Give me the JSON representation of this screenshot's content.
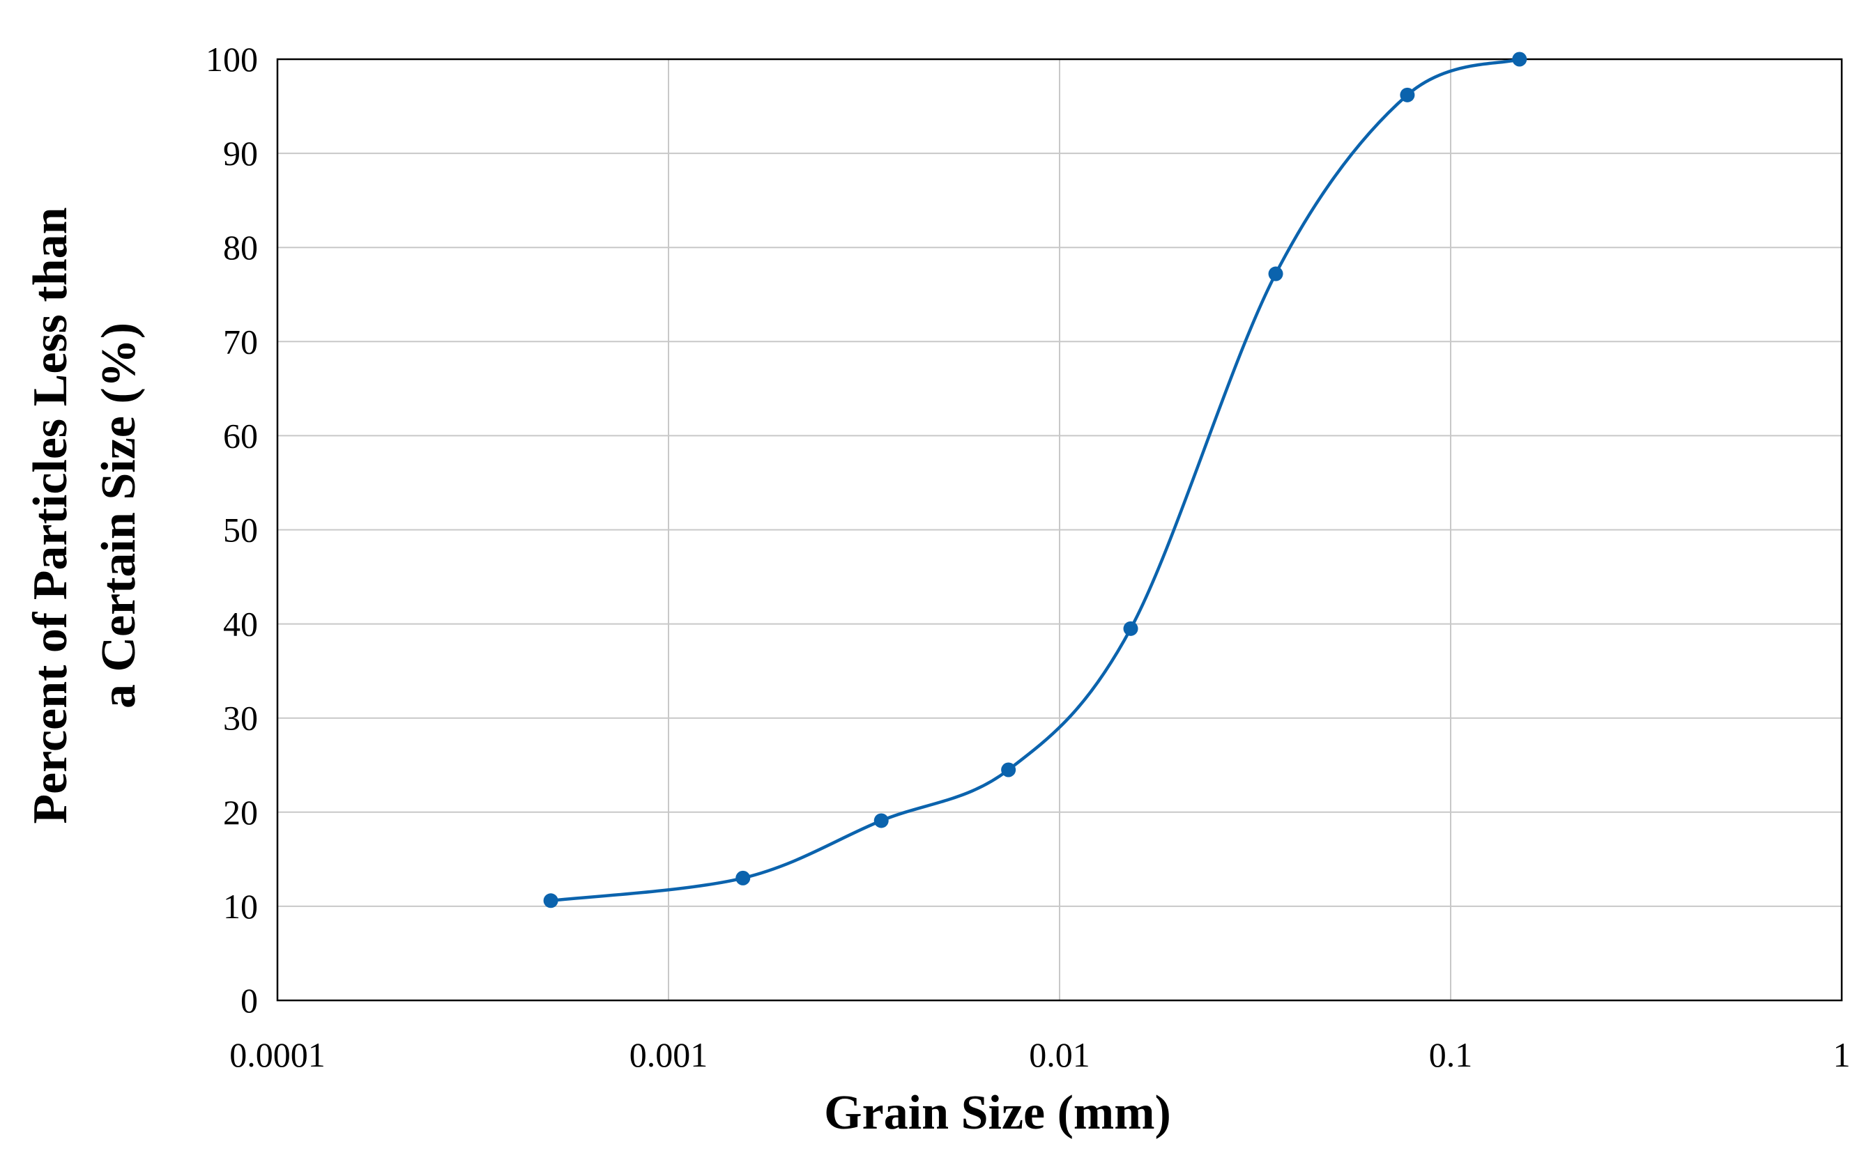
{
  "chart_data": {
    "type": "line",
    "title": "",
    "xlabel": "Grain Size (mm)",
    "ylabel_lines": [
      "Percent of Particles Less than",
      "a Certain Size (%)"
    ],
    "x_scale": "log",
    "xlim": [
      0.0001,
      1
    ],
    "ylim": [
      0,
      100
    ],
    "x_ticks": [
      0.0001,
      0.001,
      0.01,
      0.1,
      1
    ],
    "x_tick_labels": [
      "0.0001",
      "0.001",
      "0.01",
      "0.1",
      "1"
    ],
    "y_ticks": [
      0,
      10,
      20,
      30,
      40,
      50,
      60,
      70,
      80,
      90,
      100
    ],
    "y_tick_labels": [
      "0",
      "10",
      "20",
      "30",
      "40",
      "50",
      "60",
      "70",
      "80",
      "90",
      "100"
    ],
    "grid": true,
    "legend": "none",
    "line_style": "smooth",
    "series": [
      {
        "color": "#0b63ad",
        "marker": "circle",
        "x": [
          0.0005,
          0.00155,
          0.0035,
          0.0074,
          0.0152,
          0.0357,
          0.0775,
          0.15
        ],
        "y": [
          10.6,
          13.0,
          19.1,
          24.5,
          39.5,
          77.2,
          96.2,
          100.0
        ]
      }
    ]
  }
}
